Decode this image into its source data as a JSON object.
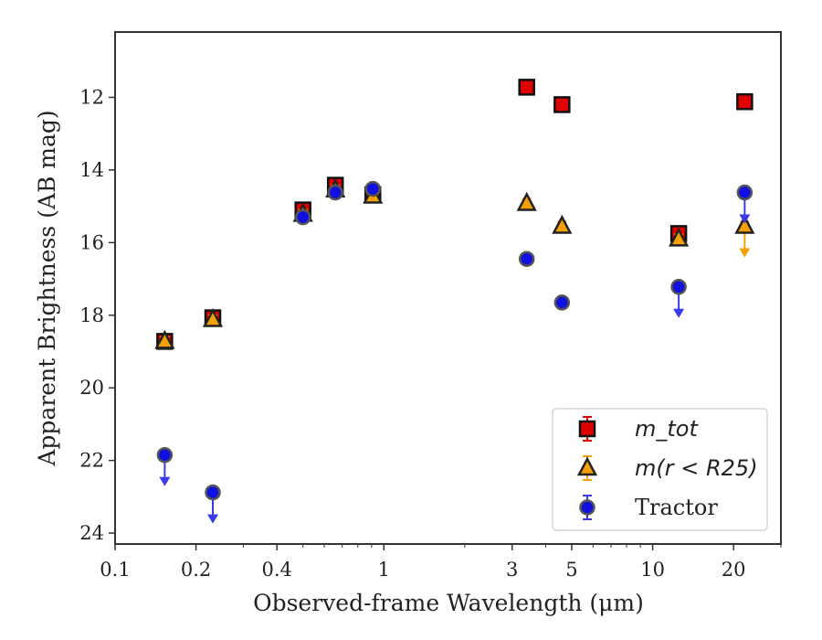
{
  "chart_data": {
    "type": "scatter",
    "xlabel": "Observed-frame Wavelength (μm)",
    "ylabel": "Apparent Brightness (AB mag)",
    "xscale": "log",
    "xlim": [
      0.1,
      30
    ],
    "ylim": [
      24.3,
      10.2
    ],
    "y_inverted": true,
    "x_ticks": [
      0.1,
      0.2,
      0.4,
      1,
      3,
      5,
      10,
      20
    ],
    "x_tick_labels": [
      "0.1",
      "0.2",
      "0.4",
      "1",
      "3",
      "5",
      "10",
      "20"
    ],
    "y_ticks": [
      12,
      14,
      16,
      18,
      20,
      22,
      24
    ],
    "y_tick_labels": [
      "12",
      "14",
      "16",
      "18",
      "20",
      "22",
      "24"
    ],
    "grid": false,
    "legend_position": "lower-right",
    "series": [
      {
        "name": "m_tot",
        "legend_label": "m_tot",
        "marker": "square",
        "color": "#e00000",
        "errorbar_color": "#e00000",
        "points": [
          {
            "x": 0.153,
            "y": 18.72,
            "upper_limit": false
          },
          {
            "x": 0.231,
            "y": 18.07,
            "upper_limit": false
          },
          {
            "x": 0.5,
            "y": 15.1,
            "upper_limit": false
          },
          {
            "x": 0.66,
            "y": 14.42,
            "upper_limit": false
          },
          {
            "x": 0.91,
            "y": 14.68,
            "upper_limit": false
          },
          {
            "x": 3.4,
            "y": 11.72,
            "upper_limit": false
          },
          {
            "x": 4.6,
            "y": 12.2,
            "upper_limit": false
          },
          {
            "x": 12.5,
            "y": 15.75,
            "upper_limit": false
          },
          {
            "x": 22.0,
            "y": 12.12,
            "upper_limit": false
          }
        ]
      },
      {
        "name": "m(r < R25)",
        "legend_label": "m(r < R25)",
        "marker": "triangle",
        "color": "#f5a000",
        "errorbar_color": "#f5a000",
        "points": [
          {
            "x": 0.153,
            "y": 18.72,
            "upper_limit": false
          },
          {
            "x": 0.231,
            "y": 18.12,
            "upper_limit": false
          },
          {
            "x": 0.5,
            "y": 15.22,
            "upper_limit": false
          },
          {
            "x": 0.66,
            "y": 14.55,
            "upper_limit": false
          },
          {
            "x": 0.91,
            "y": 14.72,
            "upper_limit": false
          },
          {
            "x": 3.4,
            "y": 14.92,
            "upper_limit": false
          },
          {
            "x": 4.6,
            "y": 15.55,
            "upper_limit": false
          },
          {
            "x": 12.5,
            "y": 15.9,
            "upper_limit": false
          },
          {
            "x": 22.0,
            "y": 15.55,
            "upper_limit": true
          }
        ]
      },
      {
        "name": "Tractor",
        "legend_label": "Tractor",
        "marker": "circle",
        "color": "#1010e0",
        "errorbar_color": "#3a3ae8",
        "points": [
          {
            "x": 0.153,
            "y": 21.85,
            "upper_limit": true
          },
          {
            "x": 0.231,
            "y": 22.88,
            "upper_limit": true
          },
          {
            "x": 0.5,
            "y": 15.3,
            "upper_limit": false
          },
          {
            "x": 0.66,
            "y": 14.62,
            "upper_limit": false
          },
          {
            "x": 0.91,
            "y": 14.52,
            "upper_limit": false
          },
          {
            "x": 3.4,
            "y": 16.45,
            "upper_limit": false
          },
          {
            "x": 4.6,
            "y": 17.65,
            "upper_limit": false
          },
          {
            "x": 12.5,
            "y": 17.22,
            "upper_limit": true
          },
          {
            "x": 22.0,
            "y": 14.62,
            "upper_limit": true
          }
        ]
      }
    ]
  }
}
